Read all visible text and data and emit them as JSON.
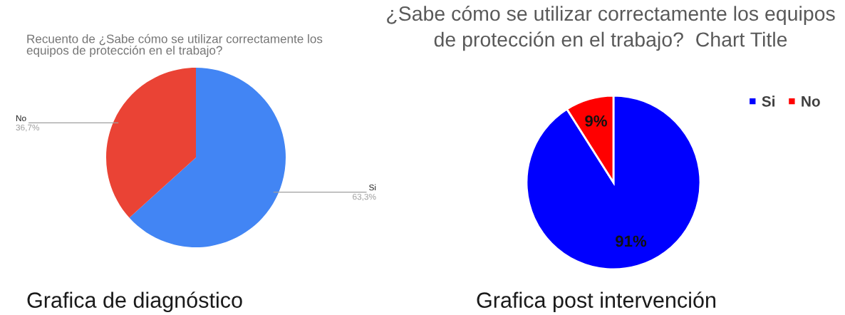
{
  "chart_data": [
    {
      "type": "pie",
      "title": "Recuento de ¿Sabe cómo se utilizar correctamente los equipos de protección en el trabajo?",
      "categories": [
        "Si",
        "No"
      ],
      "values": [
        63.3,
        36.7
      ],
      "colors": [
        "#4285f4",
        "#ea4335"
      ],
      "value_labels": [
        "63,3%",
        "36,7%"
      ],
      "legend": false,
      "annotations": [
        "Grafica de diagnóstico"
      ]
    },
    {
      "type": "pie",
      "title": "¿Sabe cómo se utilizar correctamente los equipos de protección en el trabajo?  Chart Title",
      "categories": [
        "Si",
        "No"
      ],
      "values": [
        91,
        9
      ],
      "colors": [
        "#0000ff",
        "#ff0000"
      ],
      "value_labels": [
        "91%",
        "9%"
      ],
      "legend": "top right",
      "annotations": [
        "Grafica post intervención"
      ]
    }
  ]
}
